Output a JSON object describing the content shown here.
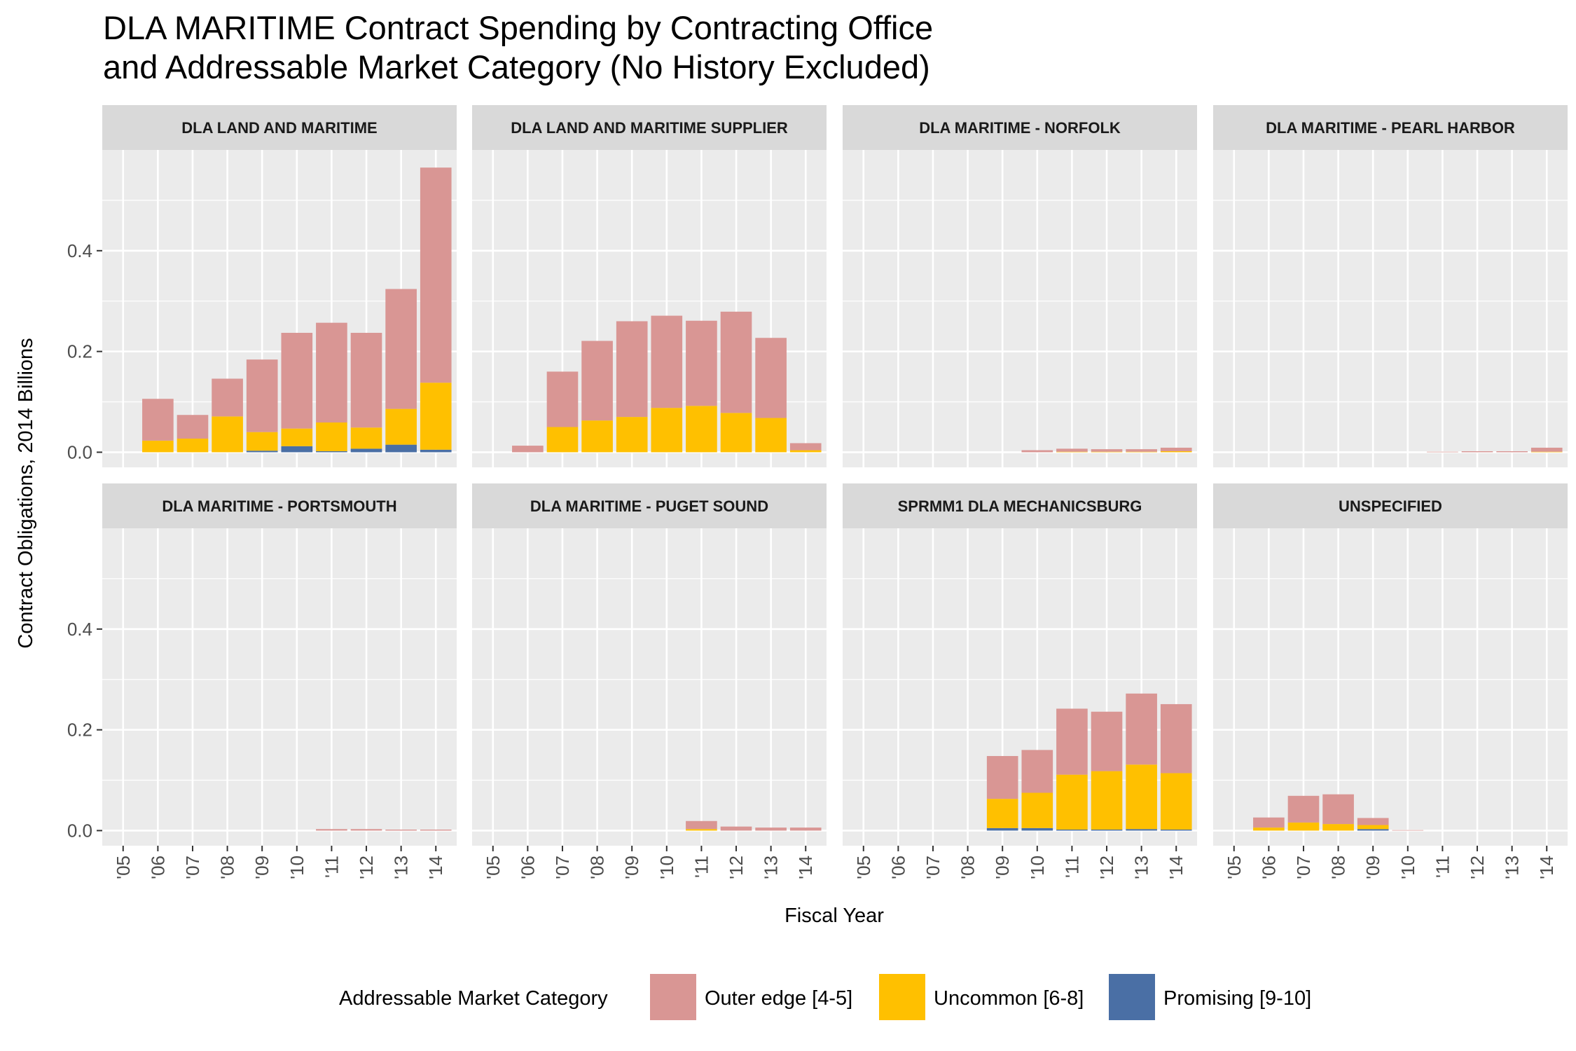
{
  "chart_data": {
    "type": "bar",
    "stacked": true,
    "faceted": true,
    "title_lines": [
      "DLA MARITIME Contract Spending by Contracting Office",
      "and Addressable Market Category (No History Excluded)"
    ],
    "xlabel": "Fiscal Year",
    "ylabel": "Contract Obligations, 2014 Billions",
    "categories": [
      "'05",
      "'06",
      "'07",
      "'08",
      "'09",
      "'10",
      "'11",
      "'12",
      "'13",
      "'14"
    ],
    "ylim": [
      -0.03,
      0.6
    ],
    "yticks": [
      "0.0",
      "0.2",
      "0.4"
    ],
    "ytick_values": [
      0,
      0.2,
      0.4
    ],
    "legend": {
      "title": "Addressable Market Category",
      "placement": "bottom",
      "items": [
        {
          "label": "Outer edge [4-5]",
          "color": "#D99694"
        },
        {
          "label": "Uncommon [6-8]",
          "color": "#FFC000"
        },
        {
          "label": "Promising [9-10]",
          "color": "#4A6FA5"
        }
      ]
    },
    "series_order": [
      "Promising [9-10]",
      "Uncommon [6-8]",
      "Outer edge [4-5]"
    ],
    "panels": [
      {
        "name": "DLA LAND AND MARITIME",
        "series": [
          {
            "name": "Promising [9-10]",
            "values": [
              0,
              0,
              0,
              0,
              0.003,
              0.012,
              0.002,
              0.007,
              0.015,
              0.005
            ]
          },
          {
            "name": "Uncommon [6-8]",
            "values": [
              0,
              0.023,
              0.027,
              0.071,
              0.037,
              0.035,
              0.057,
              0.042,
              0.071,
              0.133
            ]
          },
          {
            "name": "Outer edge [4-5]",
            "values": [
              0,
              0.083,
              0.047,
              0.075,
              0.144,
              0.19,
              0.198,
              0.188,
              0.238,
              0.427
            ]
          }
        ]
      },
      {
        "name": "DLA LAND AND MARITIME SUPPLIER",
        "series": [
          {
            "name": "Promising [9-10]",
            "values": [
              0,
              0,
              0,
              0,
              0,
              0,
              0,
              0,
              0,
              0
            ]
          },
          {
            "name": "Uncommon [6-8]",
            "values": [
              0,
              0,
              0.05,
              0.063,
              0.07,
              0.088,
              0.092,
              0.078,
              0.068,
              0.004
            ]
          },
          {
            "name": "Outer edge [4-5]",
            "values": [
              0,
              0.013,
              0.11,
              0.158,
              0.19,
              0.183,
              0.169,
              0.201,
              0.159,
              0.014
            ]
          }
        ]
      },
      {
        "name": "DLA MARITIME - NORFOLK",
        "series": [
          {
            "name": "Promising [9-10]",
            "values": [
              0,
              0,
              0,
              0,
              0,
              0,
              0,
              0,
              0,
              0
            ]
          },
          {
            "name": "Uncommon [6-8]",
            "values": [
              0,
              0,
              0,
              0,
              0,
              0,
              0.001,
              0.001,
              0.001,
              0.002
            ]
          },
          {
            "name": "Outer edge [4-5]",
            "values": [
              0,
              0,
              0,
              0,
              0,
              0.004,
              0.006,
              0.005,
              0.005,
              0.007
            ]
          }
        ]
      },
      {
        "name": "DLA MARITIME - PEARL HARBOR",
        "series": [
          {
            "name": "Promising [9-10]",
            "values": [
              0,
              0,
              0,
              0,
              0,
              0,
              0,
              0,
              0,
              0
            ]
          },
          {
            "name": "Uncommon [6-8]",
            "values": [
              0,
              0,
              0,
              0,
              0,
              0,
              0,
              0,
              0,
              0.001
            ]
          },
          {
            "name": "Outer edge [4-5]",
            "values": [
              0,
              0,
              0,
              0,
              0,
              0,
              0.001,
              0.002,
              0.002,
              0.008
            ]
          }
        ]
      },
      {
        "name": "DLA MARITIME - PORTSMOUTH",
        "series": [
          {
            "name": "Promising [9-10]",
            "values": [
              0,
              0,
              0,
              0,
              0,
              0,
              0,
              0,
              0,
              0
            ]
          },
          {
            "name": "Uncommon [6-8]",
            "values": [
              0,
              0,
              0,
              0,
              0,
              0,
              0,
              0,
              0,
              0
            ]
          },
          {
            "name": "Outer edge [4-5]",
            "values": [
              0,
              0,
              0,
              0,
              0,
              0,
              0.003,
              0.003,
              0.002,
              0.002
            ]
          }
        ]
      },
      {
        "name": "DLA MARITIME - PUGET SOUND",
        "series": [
          {
            "name": "Promising [9-10]",
            "values": [
              0,
              0,
              0,
              0,
              0,
              0,
              0,
              0,
              0,
              0
            ]
          },
          {
            "name": "Uncommon [6-8]",
            "values": [
              0,
              0,
              0,
              0,
              0,
              0,
              0.003,
              0,
              0,
              0
            ]
          },
          {
            "name": "Outer edge [4-5]",
            "values": [
              0,
              0,
              0,
              0,
              0,
              0,
              0.016,
              0.008,
              0.006,
              0.006
            ]
          }
        ]
      },
      {
        "name": "SPRMM1 DLA MECHANICSBURG",
        "series": [
          {
            "name": "Promising [9-10]",
            "values": [
              0,
              0,
              0,
              0,
              0.005,
              0.005,
              0.002,
              0.002,
              0.003,
              0.002
            ]
          },
          {
            "name": "Uncommon [6-8]",
            "values": [
              0,
              0,
              0,
              0,
              0.058,
              0.07,
              0.109,
              0.116,
              0.128,
              0.112
            ]
          },
          {
            "name": "Outer edge [4-5]",
            "values": [
              0,
              0,
              0,
              0,
              0.085,
              0.085,
              0.131,
              0.118,
              0.141,
              0.137
            ]
          }
        ]
      },
      {
        "name": "UNSPECIFIED",
        "series": [
          {
            "name": "Promising [9-10]",
            "values": [
              0,
              0,
              0,
              0,
              0.003,
              0,
              0,
              0,
              0,
              0
            ]
          },
          {
            "name": "Uncommon [6-8]",
            "values": [
              0,
              0.006,
              0.016,
              0.013,
              0.008,
              0,
              0,
              0,
              0,
              0
            ]
          },
          {
            "name": "Outer edge [4-5]",
            "values": [
              0,
              0.02,
              0.053,
              0.059,
              0.014,
              0.001,
              0,
              0,
              0,
              0
            ]
          }
        ]
      }
    ],
    "panel_background": "#EBEBEB",
    "strip_background": "#D9D9D9",
    "grid": true
  }
}
